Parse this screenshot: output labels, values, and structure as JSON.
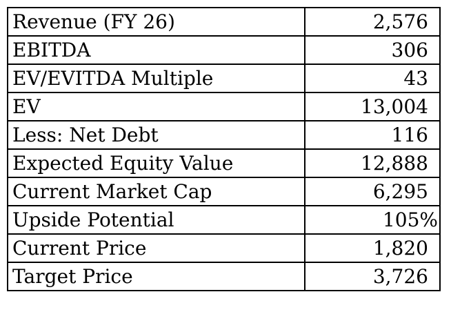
{
  "table": {
    "rows": [
      {
        "label": "Revenue (FY 26)",
        "value": "2,576"
      },
      {
        "label": "EBITDA",
        "value": "306"
      },
      {
        "label": "EV/EVITDA Multiple",
        "value": "43"
      },
      {
        "label": "EV",
        "value": "13,004"
      },
      {
        "label": "Less: Net Debt",
        "value": "116"
      },
      {
        "label": "Expected Equity Value",
        "value": "12,888"
      },
      {
        "label": "Current Market Cap",
        "value": "6,295"
      },
      {
        "label": "Upside Potential",
        "value": "105%"
      },
      {
        "label": "Current Price",
        "value": "1,820"
      },
      {
        "label": "Target Price",
        "value": "3,726"
      }
    ]
  }
}
